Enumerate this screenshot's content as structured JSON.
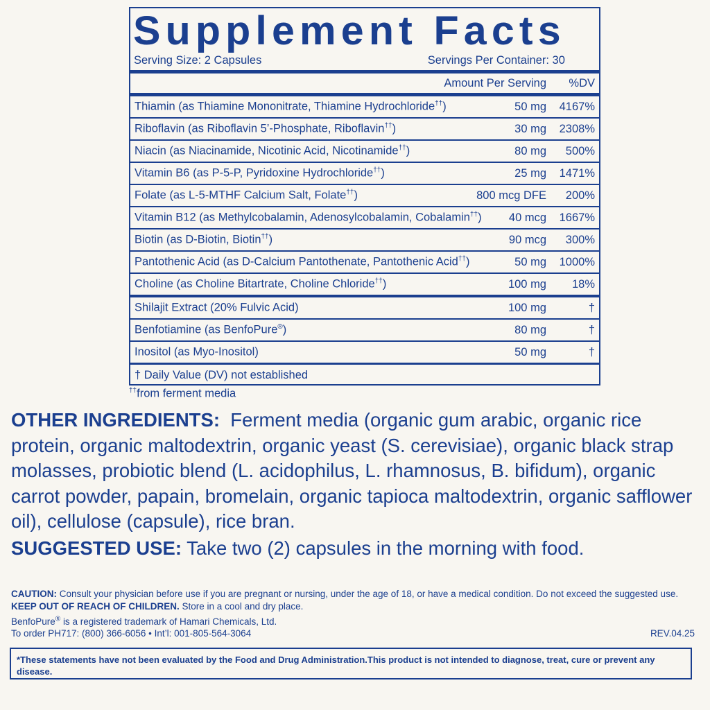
{
  "title": "Supplement Facts",
  "serving_size": "Serving Size: 2 Capsules",
  "servings_per_container": "Servings Per Container: 30",
  "header": {
    "amount": "Amount Per Serving",
    "dv": "%DV"
  },
  "rows": [
    {
      "name": "Thiamin (as Thiamine Mononitrate, Thiamine Hydrochloride",
      "mark": "††",
      "amount": "50 mg",
      "dv": "4167%"
    },
    {
      "name": "Riboflavin (as Riboflavin 5’-Phosphate, Riboflavin",
      "mark": "††",
      "amount": "30 mg",
      "dv": "2308%"
    },
    {
      "name": "Niacin (as Niacinamide, Nicotinic Acid, Nicotinamide",
      "mark": "††",
      "amount": "80 mg",
      "dv": "500%"
    },
    {
      "name": "Vitamin B6 (as P-5-P, Pyridoxine Hydrochloride",
      "mark": "††",
      "amount": "25 mg",
      "dv": "1471%"
    },
    {
      "name": "Folate (as L-5-MTHF Calcium Salt, Folate",
      "mark": "††",
      "amount": "800 mcg DFE",
      "dv": "200%"
    },
    {
      "name": "Vitamin B12 (as Methylcobalamin, Adenosylcobalamin, Cobalamin",
      "mark": "††",
      "amount": "40 mcg",
      "dv": "1667%"
    },
    {
      "name": "Biotin (as D-Biotin, Biotin",
      "mark": "††",
      "amount": "90 mcg",
      "dv": "300%"
    },
    {
      "name": "Pantothenic Acid (as D-Calcium Pantothenate, Pantothenic Acid",
      "mark": "††",
      "amount": "50 mg",
      "dv": "1000%"
    },
    {
      "name": "Choline (as Choline Bitartrate, Choline Chloride",
      "mark": "††",
      "amount": "100 mg",
      "dv": "18%"
    },
    {
      "name": "Shilajit Extract (20% Fulvic Acid)",
      "mark": "",
      "amount": "100 mg",
      "dv": "†"
    },
    {
      "name": "Benfotiamine (as BenfoPure",
      "mark": "®",
      "amount": "80 mg",
      "dv": "†"
    },
    {
      "name": "Inositol (as Myo-Inositol)",
      "mark": "",
      "amount": "50 mg",
      "dv": "†"
    }
  ],
  "dv_note": "† Daily Value (DV) not established",
  "ferment_note": {
    "mark": "††",
    "text": "from ferment media"
  },
  "other_ingredients": {
    "label": "OTHER INGREDIENTS:",
    "text": "Ferment media (organic gum arabic, organic rice protein, organic maltodextrin, organic yeast (S. cerevisiae), organic black strap molasses, probiotic blend (L. acidophilus, L. rhamnosus, B. bifidum), organic carrot powder, papain, bromelain, organic tapioca maltodextrin, organic safflower oil), cellulose (capsule), rice bran."
  },
  "suggested_use": {
    "label": "SUGGESTED USE:",
    "text": "Take two (2) capsules in the morning with food."
  },
  "caution": {
    "label": "CAUTION:",
    "text1": "Consult your physician before use if you are pregnant or nursing, under the age of 18, or have a medical condition. Do not exceed the suggested use.",
    "keep_out": "KEEP OUT OF REACH OF CHILDREN.",
    "text2": "Store in a cool and dry place."
  },
  "trademark": {
    "brand": "BenfoPure",
    "mark": "®",
    "text": "is a registered trademark of Hamari Chemicals, Ltd."
  },
  "order": "To order PH717: (800) 366-6056 • Int’l: 001-805-564-3064",
  "revision": "REV.04.25",
  "fda_disclaimer": "*These statements have not been evaluated by the Food and Drug Administration.This product is not intended to diagnose, treat, cure or prevent any disease.",
  "colors": {
    "text": "#1b3f8f",
    "background": "#f8f6f1"
  }
}
